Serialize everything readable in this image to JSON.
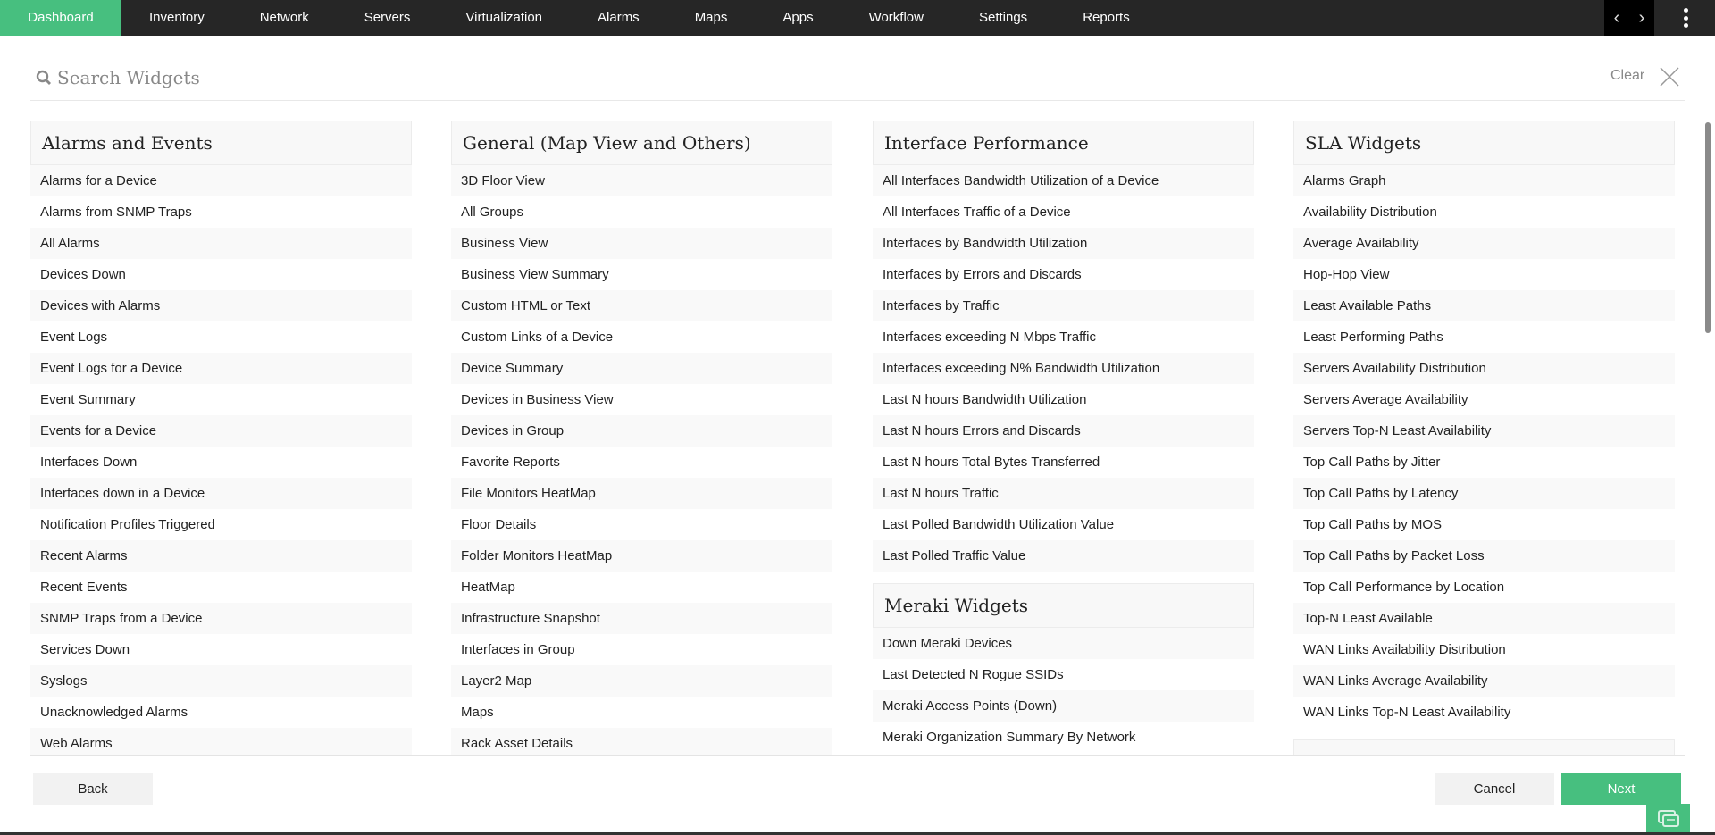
{
  "nav": {
    "items": [
      "Dashboard",
      "Inventory",
      "Network",
      "Servers",
      "Virtualization",
      "Alarms",
      "Maps",
      "Apps",
      "Workflow",
      "Settings",
      "Reports"
    ],
    "active": "Dashboard",
    "accent": "#47bf7f"
  },
  "search": {
    "placeholder": "Search Widgets",
    "clear_label": "Clear"
  },
  "columns": [
    {
      "title": "Alarms and Events",
      "items": [
        "Alarms for a Device",
        "Alarms from SNMP Traps",
        "All Alarms",
        "Devices Down",
        "Devices with Alarms",
        "Event Logs",
        "Event Logs for a Device",
        "Event Summary",
        "Events for a Device",
        "Interfaces Down",
        "Interfaces down in a Device",
        "Notification Profiles Triggered",
        "Recent Alarms",
        "Recent Events",
        "SNMP Traps from a Device",
        "Services Down",
        "Syslogs",
        "Unacknowledged Alarms",
        "Web Alarms"
      ]
    },
    {
      "title": "General (Map View and Others)",
      "items": [
        "3D Floor View",
        "All Groups",
        "Business View",
        "Business View Summary",
        "Custom HTML or Text",
        "Custom Links of a Device",
        "Device Summary",
        "Devices in Business View",
        "Devices in Group",
        "Favorite Reports",
        "File Monitors HeatMap",
        "Floor Details",
        "Folder Monitors HeatMap",
        "HeatMap",
        "Infrastructure Snapshot",
        "Interfaces in Group",
        "Layer2 Map",
        "Maps",
        "Rack Asset Details"
      ]
    },
    {
      "title": "Interface Performance",
      "items": [
        "All Interfaces Bandwidth Utilization of a Device",
        "All Interfaces Traffic of a Device",
        "Interfaces by Bandwidth Utilization",
        "Interfaces by Errors and Discards",
        "Interfaces by Traffic",
        "Interfaces exceeding N Mbps Traffic",
        "Interfaces exceeding N% Bandwidth Utilization",
        "Last N hours Bandwidth Utilization",
        "Last N hours Errors and Discards",
        "Last N hours Total Bytes Transferred",
        "Last N hours Traffic",
        "Last Polled Bandwidth Utilization Value",
        "Last Polled Traffic Value"
      ],
      "sub": {
        "title": "Meraki Widgets",
        "items": [
          "Down Meraki Devices",
          "Last Detected N Rogue SSIDs",
          "Meraki Access Points (Down)",
          "Meraki Organization Summary By Network"
        ]
      }
    },
    {
      "title": "SLA Widgets",
      "items": [
        "Alarms Graph",
        "Availability Distribution",
        "Average Availability",
        "Hop-Hop View",
        "Least Available Paths",
        "Least Performing Paths",
        "Servers Availability Distribution",
        "Servers Average Availability",
        "Servers Top-N Least Availability",
        "Top Call Paths by Jitter",
        "Top Call Paths by Latency",
        "Top Call Paths by MOS",
        "Top Call Paths by Packet Loss",
        "Top Call Performance by Location",
        "Top-N Least Available",
        "WAN Links Availability Distribution",
        "WAN Links Average Availability",
        "WAN Links Top-N Least Availability"
      ],
      "sub": {
        "title": "",
        "items": []
      }
    }
  ],
  "footer": {
    "back": "Back",
    "cancel": "Cancel",
    "next": "Next"
  }
}
